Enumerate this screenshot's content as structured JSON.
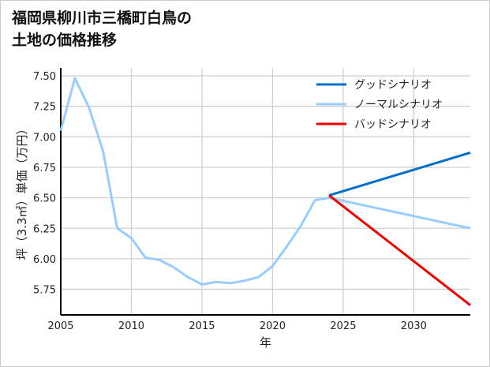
{
  "chart_data": {
    "type": "line",
    "title_lines": [
      "福岡県柳川市三橋町白鳥の",
      "土地の価格推移"
    ],
    "xlabel": "年",
    "ylabel": "坪（3.3㎡）単価（万円）",
    "xlim": [
      2005,
      2034
    ],
    "ylim": [
      5.54,
      7.565
    ],
    "xticks": [
      2005,
      2010,
      2015,
      2020,
      2025,
      2030
    ],
    "yticks": [
      5.75,
      6.0,
      6.25,
      6.5,
      6.75,
      7.0,
      7.25,
      7.5
    ],
    "grid": true,
    "legend_position": "top-right",
    "series": [
      {
        "name": "グッドシナリオ",
        "color": "#0070cc",
        "x": [
          2024,
          2034
        ],
        "y": [
          6.52,
          6.87
        ]
      },
      {
        "name": "ノーマルシナリオ",
        "color": "#99ccff",
        "x": [
          2005,
          2006,
          2007,
          2008,
          2009,
          2010,
          2011,
          2012,
          2013,
          2014,
          2015,
          2016,
          2017,
          2018,
          2019,
          2020,
          2021,
          2022,
          2023,
          2024,
          2034
        ],
        "y": [
          7.05,
          7.48,
          7.24,
          6.88,
          6.25,
          6.17,
          6.01,
          5.99,
          5.93,
          5.85,
          5.79,
          5.81,
          5.8,
          5.82,
          5.85,
          5.94,
          6.1,
          6.27,
          6.48,
          6.5,
          6.25
        ]
      },
      {
        "name": "バッドシナリオ",
        "color": "#ee0000",
        "x": [
          2024,
          2034
        ],
        "y": [
          6.52,
          5.62
        ]
      }
    ]
  }
}
